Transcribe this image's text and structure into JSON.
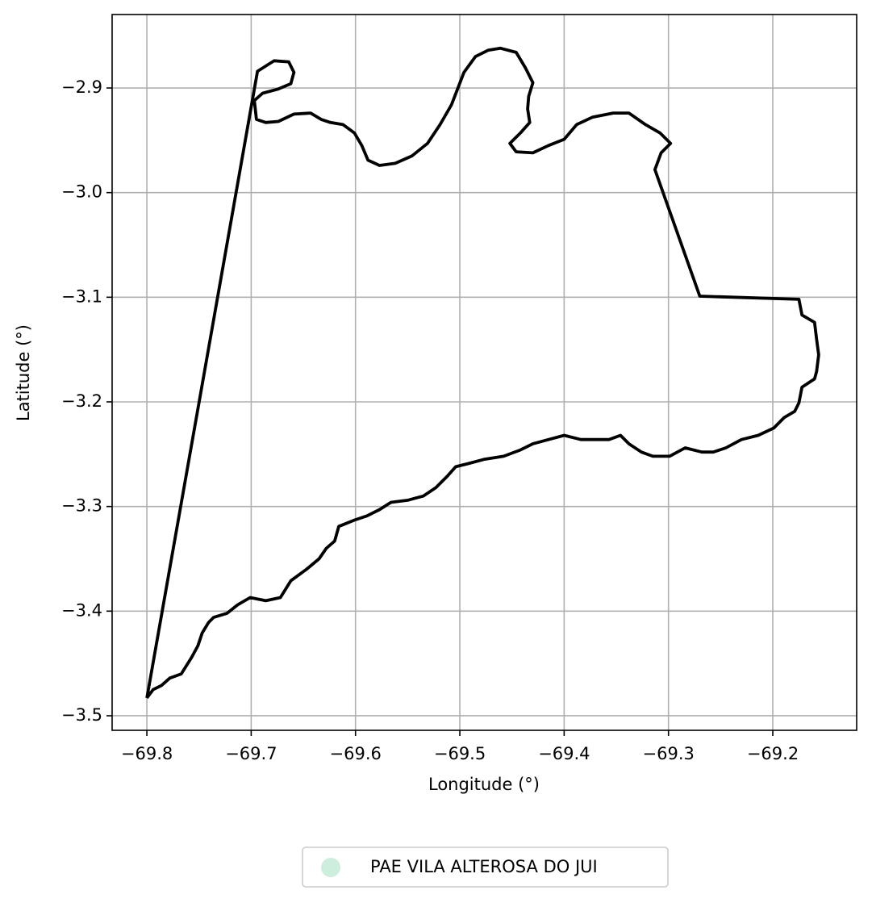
{
  "chart_data": {
    "type": "line",
    "xlabel": "Longitude (°)",
    "ylabel": "Latitude (°)",
    "xlim": [
      -69.8333,
      -69.1196
    ],
    "ylim": [
      -3.5139,
      -2.8298
    ],
    "xticks": [
      {
        "value": -69.8,
        "label": "−69.8"
      },
      {
        "value": -69.7,
        "label": "−69.7"
      },
      {
        "value": -69.6,
        "label": "−69.6"
      },
      {
        "value": -69.5,
        "label": "−69.5"
      },
      {
        "value": -69.4,
        "label": "−69.4"
      },
      {
        "value": -69.3,
        "label": "−69.3"
      },
      {
        "value": -69.2,
        "label": "−69.2"
      }
    ],
    "yticks": [
      {
        "value": -2.9,
        "label": "−2.9"
      },
      {
        "value": -3.0,
        "label": "−3.0"
      },
      {
        "value": -3.1,
        "label": "−3.1"
      },
      {
        "value": -3.2,
        "label": "−3.2"
      },
      {
        "value": -3.3,
        "label": "−3.3"
      },
      {
        "value": -3.4,
        "label": "−3.4"
      },
      {
        "value": -3.5,
        "label": "−3.5"
      }
    ],
    "grid": true,
    "legend": "bottom",
    "series": [
      {
        "name": "PAE VILA ALTEROSA DO JUI",
        "color": "#000000",
        "legend_color": "#cdeedd",
        "x": [
          -69.8,
          -69.694,
          -69.678,
          -69.664,
          -69.659,
          -69.662,
          -69.674,
          -69.689,
          -69.697,
          -69.695,
          -69.686,
          -69.674,
          -69.659,
          -69.643,
          -69.633,
          -69.624,
          -69.612,
          -69.601,
          -69.594,
          -69.588,
          -69.577,
          -69.562,
          -69.546,
          -69.531,
          -69.519,
          -69.508,
          -69.496,
          -69.485,
          -69.473,
          -69.461,
          -69.446,
          -69.437,
          -69.43,
          -69.434,
          -69.435,
          -69.433,
          -69.442,
          -69.452,
          -69.446,
          -69.43,
          -69.415,
          -69.4,
          -69.388,
          -69.373,
          -69.353,
          -69.338,
          -69.322,
          -69.308,
          -69.298,
          -69.307,
          -69.313,
          -69.27,
          -69.175,
          -69.172,
          -69.16,
          -69.158,
          -69.156,
          -69.158,
          -69.16,
          -69.172,
          -69.175,
          -69.179,
          -69.189,
          -69.199,
          -69.214,
          -69.23,
          -69.245,
          -69.257,
          -69.268,
          -69.284,
          -69.299,
          -69.315,
          -69.326,
          -69.338,
          -69.346,
          -69.357,
          -69.369,
          -69.384,
          -69.4,
          -69.415,
          -69.43,
          -69.442,
          -69.458,
          -69.477,
          -69.492,
          -69.504,
          -69.512,
          -69.523,
          -69.535,
          -69.55,
          -69.566,
          -69.577,
          -69.589,
          -69.601,
          -69.616,
          -69.62,
          -69.628,
          -69.635,
          -69.647,
          -69.662,
          -69.672,
          -69.686,
          -69.701,
          -69.713,
          -69.723,
          -69.736,
          -69.741,
          -69.747,
          -69.751,
          -69.757,
          -69.767,
          -69.778,
          -69.786,
          -69.794,
          -69.8
        ],
        "values": [
          -3.483,
          -2.884,
          -2.874,
          -2.875,
          -2.885,
          -2.896,
          -2.901,
          -2.905,
          -2.912,
          -2.93,
          -2.933,
          -2.932,
          -2.925,
          -2.924,
          -2.93,
          -2.933,
          -2.935,
          -2.943,
          -2.955,
          -2.969,
          -2.974,
          -2.972,
          -2.965,
          -2.953,
          -2.935,
          -2.916,
          -2.885,
          -2.87,
          -2.864,
          -2.862,
          -2.866,
          -2.881,
          -2.895,
          -2.908,
          -2.92,
          -2.933,
          -2.943,
          -2.953,
          -2.961,
          -2.962,
          -2.955,
          -2.949,
          -2.935,
          -2.928,
          -2.924,
          -2.924,
          -2.935,
          -2.943,
          -2.953,
          -2.962,
          -2.978,
          -3.099,
          -3.102,
          -3.117,
          -3.124,
          -3.14,
          -3.155,
          -3.171,
          -3.178,
          -3.186,
          -3.201,
          -3.209,
          -3.215,
          -3.225,
          -3.232,
          -3.236,
          -3.244,
          -3.248,
          -3.248,
          -3.244,
          -3.252,
          -3.252,
          -3.248,
          -3.24,
          -3.232,
          -3.236,
          -3.236,
          -3.236,
          -3.232,
          -3.236,
          -3.24,
          -3.246,
          -3.252,
          -3.255,
          -3.259,
          -3.262,
          -3.271,
          -3.282,
          -3.29,
          -3.294,
          -3.296,
          -3.303,
          -3.309,
          -3.313,
          -3.319,
          -3.333,
          -3.34,
          -3.35,
          -3.36,
          -3.371,
          -3.387,
          -3.39,
          -3.387,
          -3.394,
          -3.402,
          -3.406,
          -3.411,
          -3.421,
          -3.433,
          -3.444,
          -3.46,
          -3.464,
          -3.471,
          -3.475,
          -3.483
        ]
      }
    ]
  }
}
